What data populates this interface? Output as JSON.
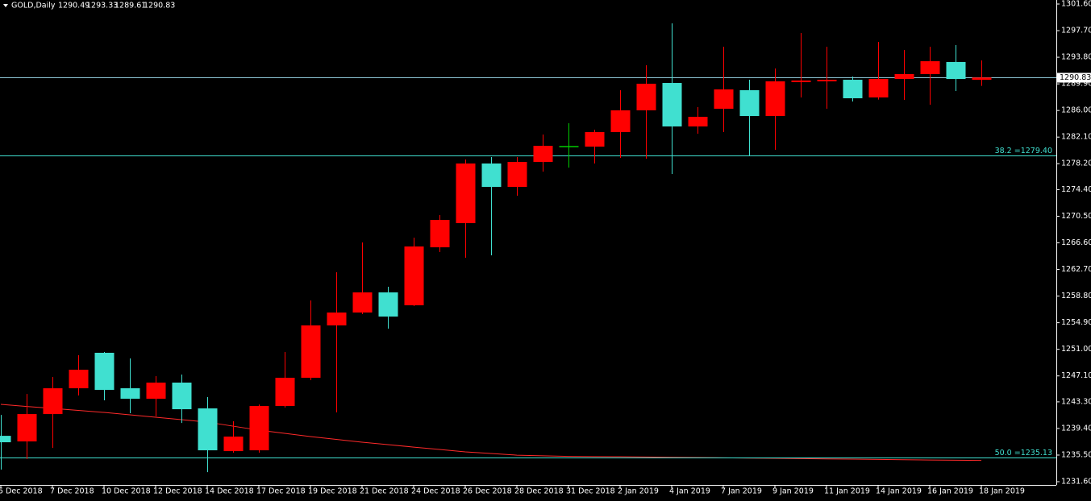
{
  "chart_data": {
    "type": "candlestick",
    "title": "GOLD,Daily",
    "x": [
      "5 Dec 2018",
      null,
      "7 Dec 2018",
      null,
      "10 Dec 2018",
      null,
      "12 Dec 2018",
      null,
      "14 Dec 2018",
      null,
      "17 Dec 2018",
      null,
      "19 Dec 2018",
      null,
      "21 Dec 2018",
      null,
      "24 Dec 2018",
      null,
      "26 Dec 2018",
      null,
      "28 Dec 2018",
      null,
      "31 Dec 2018",
      null,
      "2 Jan 2019",
      null,
      "4 Jan 2019",
      null,
      "7 Jan 2019",
      null,
      "9 Jan 2019",
      null,
      "11 Jan 2019",
      null,
      "14 Jan 2019",
      null,
      "16 Jan 2019",
      null,
      "18 Jan 2019"
    ],
    "open": [
      1238.32,
      1237.5,
      1241.51,
      1245.29,
      1250.49,
      1245.29,
      1243.75,
      1246.12,
      1242.34,
      1236.08,
      1236.2,
      1242.69,
      1246.83,
      1254.5,
      1256.39,
      1259.34,
      1257.45,
      1265.95,
      1269.49,
      1278.23,
      1274.8,
      1278.46,
      1280.7,
      1280.7,
      1282.83,
      1286.02,
      1290.03,
      1283.66,
      1286.25,
      1288.97,
      1285.19,
      1290.15,
      1290.27,
      1290.5,
      1287.91,
      1290.62,
      1291.33,
      1293.1,
      1290.49
    ],
    "high": [
      1241.39,
      1244.46,
      1246.94,
      1250.13,
      1250.6,
      1249.66,
      1247.06,
      1247.3,
      1243.99,
      1240.45,
      1242.9,
      1250.6,
      1258.16,
      1262.29,
      1266.66,
      1260.17,
      1267.36,
      1270.67,
      1278.82,
      1279.17,
      1279.17,
      1282.48,
      1284.13,
      1283.18,
      1288.97,
      1292.63,
      1298.77,
      1286.49,
      1295.34,
      1290.5,
      1292.16,
      1297.35,
      1295.34,
      1290.98,
      1296.05,
      1294.87,
      1295.34,
      1295.58,
      1293.33
    ],
    "low": [
      1233.37,
      1234.9,
      1236.55,
      1244.23,
      1243.52,
      1241.63,
      1241.16,
      1240.21,
      1233.01,
      1235.85,
      1235.85,
      1242.46,
      1246.47,
      1241.75,
      1256.15,
      1254.03,
      1257.33,
      1265.24,
      1264.41,
      1264.77,
      1273.5,
      1277.04,
      1277.63,
      1278.23,
      1279.05,
      1278.93,
      1276.69,
      1282.59,
      1282.83,
      1279.41,
      1280.23,
      1287.91,
      1286.25,
      1287.32,
      1287.6,
      1287.55,
      1286.84,
      1288.85,
      1289.61
    ],
    "close": [
      1237.38,
      1241.51,
      1245.29,
      1248.01,
      1245.05,
      1243.75,
      1246.12,
      1242.22,
      1236.2,
      1238.21,
      1242.69,
      1246.83,
      1254.5,
      1256.39,
      1259.34,
      1255.8,
      1266.07,
      1269.96,
      1278.23,
      1274.8,
      1278.46,
      1280.82,
      1280.7,
      1282.83,
      1286.02,
      1289.92,
      1283.66,
      1285.07,
      1289.09,
      1285.19,
      1290.27,
      1290.39,
      1290.5,
      1287.79,
      1290.62,
      1291.33,
      1293.22,
      1290.62,
      1290.83
    ],
    "up_color": "#ff0000",
    "down_color": "#40e0d0",
    "doji_color": "#00cc00",
    "series": [
      {
        "color": "#ff2a2a",
        "values": [
          1242.93,
          1242.63,
          1242.34,
          1242.05,
          1241.75,
          1241.4,
          1241.04,
          1240.69,
          1240.33,
          1239.74,
          1239.15,
          1238.68,
          1238.21,
          1237.8,
          1237.38,
          1237.03,
          1236.67,
          1236.32,
          1235.97,
          1235.73,
          1235.49,
          1235.4,
          1235.31,
          1235.28,
          1235.26,
          1235.22,
          1235.18,
          1235.14,
          1235.1,
          1235.06,
          1235.02,
          1234.98,
          1234.94,
          1234.9,
          1234.86,
          1234.82,
          1234.78,
          1234.75,
          1234.72
        ]
      }
    ],
    "levels": [
      {
        "label": "38.2 =1279.40",
        "value": 1279.4,
        "color": "#40e0d0"
      },
      {
        "label": "50.0 =1235.13",
        "value": 1235.13,
        "color": "#40e0d0"
      }
    ],
    "price_line_color": "#8fc8d8",
    "ylim": [
      1231.13,
      1302.19
    ],
    "yticks": [
      {
        "value": 1301.6,
        "label": "1301.60"
      },
      {
        "value": 1297.7,
        "label": "1297.70"
      },
      {
        "value": 1293.8,
        "label": "1293.80"
      },
      {
        "value": 1289.9,
        "label": "1289.90"
      },
      {
        "value": 1286.0,
        "label": "1286.00"
      },
      {
        "value": 1282.1,
        "label": "1282.10"
      },
      {
        "value": 1278.2,
        "label": "1278.20"
      },
      {
        "value": 1274.4,
        "label": "1274.40"
      },
      {
        "value": 1270.5,
        "label": "1270.50"
      },
      {
        "value": 1266.6,
        "label": "1266.60"
      },
      {
        "value": 1262.7,
        "label": "1262.70"
      },
      {
        "value": 1258.8,
        "label": "1258.80"
      },
      {
        "value": 1254.9,
        "label": "1254.90"
      },
      {
        "value": 1251.0,
        "label": "1251.00"
      },
      {
        "value": 1247.1,
        "label": "1247.10"
      },
      {
        "value": 1243.3,
        "label": "1243.30"
      },
      {
        "value": 1239.4,
        "label": "1239.40"
      },
      {
        "value": 1235.5,
        "label": "1235.50"
      },
      {
        "value": 1231.6,
        "label": "1231.60"
      }
    ]
  }
}
